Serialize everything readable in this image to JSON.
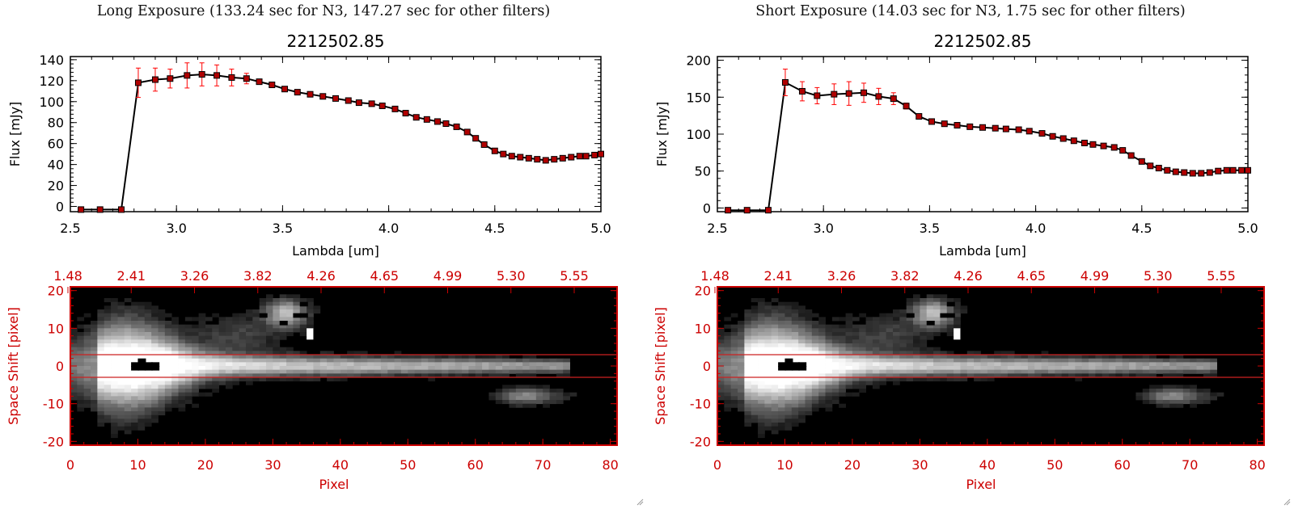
{
  "panels": [
    {
      "exposure_title": "Long Exposure (133.24 sec for N3, 147.27 sec for other filters)",
      "chart_data": [
        {
          "type": "line",
          "title": "2212502.85",
          "xlabel": "Lambda [um]",
          "ylabel": "Flux [mJy]",
          "xlim": [
            2.5,
            5.0
          ],
          "ylim": [
            -5,
            143
          ],
          "xticks": [
            "2.5",
            "3.0",
            "3.5",
            "4.0",
            "4.5",
            "5.0"
          ],
          "yticks": [
            "0",
            "20",
            "40",
            "60",
            "80",
            "100",
            "120",
            "140"
          ],
          "line_color": "#000000",
          "marker_color": "#b00000",
          "error_color": "#ff0000",
          "x": [
            2.55,
            2.64,
            2.74,
            2.82,
            2.9,
            2.97,
            3.05,
            3.12,
            3.19,
            3.26,
            3.33,
            3.39,
            3.45,
            3.51,
            3.57,
            3.63,
            3.69,
            3.75,
            3.81,
            3.86,
            3.92,
            3.97,
            4.03,
            4.08,
            4.13,
            4.18,
            4.23,
            4.27,
            4.32,
            4.37,
            4.41,
            4.45,
            4.5,
            4.54,
            4.58,
            4.62,
            4.66,
            4.7,
            4.74,
            4.78,
            4.82,
            4.86,
            4.9,
            4.93,
            4.97,
            5.0
          ],
          "y": [
            -3,
            -3,
            -3,
            118,
            121,
            122,
            125,
            126,
            125,
            123,
            122,
            119,
            116,
            112,
            109,
            107,
            105,
            103,
            101,
            99,
            98,
            96,
            93,
            89,
            85,
            83,
            81,
            79,
            76,
            71,
            65,
            59,
            53,
            50,
            48,
            47,
            46,
            45,
            44,
            45,
            46,
            47,
            48,
            48,
            49,
            50
          ],
          "yerr": [
            0,
            0,
            0,
            14,
            11,
            9,
            12,
            11,
            10,
            8,
            5,
            2,
            2,
            2,
            2,
            2,
            2,
            2,
            2,
            2,
            2,
            2,
            2,
            2,
            2,
            2,
            2,
            2,
            2,
            2,
            2,
            2,
            2,
            2,
            2,
            2,
            2,
            2,
            2,
            2,
            2,
            2,
            2,
            2,
            2,
            2
          ]
        },
        {
          "type": "heatmap",
          "xlabel": "Pixel",
          "ylabel": "Space Shift [pixel]",
          "xlim": [
            0,
            81
          ],
          "ylim": [
            -21,
            21
          ],
          "xticks": [
            "0",
            "10",
            "20",
            "30",
            "40",
            "50",
            "60",
            "70",
            "80"
          ],
          "yticks": [
            "-20",
            "-10",
            "0",
            "10",
            "20"
          ],
          "top_axis_labels": [
            "1.48",
            "2.41",
            "3.26",
            "3.82",
            "4.26",
            "4.65",
            "4.99",
            "5.30",
            "5.55"
          ],
          "aperture_lines_y": [
            3,
            -3
          ],
          "axis_color": "#cc0000",
          "line_color": "#cc2020"
        }
      ]
    },
    {
      "exposure_title": "Short Exposure (14.03 sec for N3, 1.75 sec for other filters)",
      "chart_data": [
        {
          "type": "line",
          "title": "2212502.85",
          "xlabel": "Lambda [um]",
          "ylabel": "Flux [mJy]",
          "xlim": [
            2.5,
            5.0
          ],
          "ylim": [
            -5,
            205
          ],
          "xticks": [
            "2.5",
            "3.0",
            "3.5",
            "4.0",
            "4.5",
            "5.0"
          ],
          "yticks": [
            "0",
            "50",
            "100",
            "150",
            "200"
          ],
          "line_color": "#000000",
          "marker_color": "#b00000",
          "error_color": "#ff0000",
          "x": [
            2.55,
            2.64,
            2.74,
            2.82,
            2.9,
            2.97,
            3.05,
            3.12,
            3.19,
            3.26,
            3.33,
            3.39,
            3.45,
            3.51,
            3.57,
            3.63,
            3.69,
            3.75,
            3.81,
            3.86,
            3.92,
            3.97,
            4.03,
            4.08,
            4.13,
            4.18,
            4.23,
            4.27,
            4.32,
            4.37,
            4.41,
            4.45,
            4.5,
            4.54,
            4.58,
            4.62,
            4.66,
            4.7,
            4.74,
            4.78,
            4.82,
            4.86,
            4.9,
            4.93,
            4.97,
            5.0
          ],
          "y": [
            -3,
            -3,
            -3,
            170,
            158,
            152,
            154,
            155,
            156,
            151,
            148,
            138,
            124,
            117,
            114,
            112,
            110,
            109,
            108,
            107,
            106,
            104,
            101,
            97,
            94,
            91,
            88,
            86,
            84,
            82,
            78,
            71,
            63,
            57,
            54,
            51,
            49,
            48,
            47,
            47,
            48,
            50,
            51,
            51,
            51,
            51
          ],
          "yerr": [
            0,
            0,
            0,
            18,
            13,
            11,
            14,
            16,
            13,
            11,
            8,
            4,
            3,
            2,
            2,
            2,
            2,
            2,
            2,
            2,
            2,
            2,
            2,
            2,
            2,
            2,
            2,
            2,
            2,
            2,
            2,
            2,
            2,
            2,
            2,
            2,
            2,
            2,
            2,
            2,
            2,
            2,
            2,
            2,
            2,
            2
          ]
        },
        {
          "type": "heatmap",
          "xlabel": "Pixel",
          "ylabel": "Space Shift [pixel]",
          "xlim": [
            0,
            81
          ],
          "ylim": [
            -21,
            21
          ],
          "xticks": [
            "0",
            "10",
            "20",
            "30",
            "40",
            "50",
            "60",
            "70",
            "80"
          ],
          "yticks": [
            "-20",
            "-10",
            "0",
            "10",
            "20"
          ],
          "top_axis_labels": [
            "1.48",
            "2.41",
            "3.26",
            "3.82",
            "4.26",
            "4.65",
            "4.99",
            "5.30",
            "5.55"
          ],
          "aperture_lines_y": [
            3,
            -3
          ],
          "axis_color": "#cc0000",
          "line_color": "#cc2020"
        }
      ]
    }
  ]
}
